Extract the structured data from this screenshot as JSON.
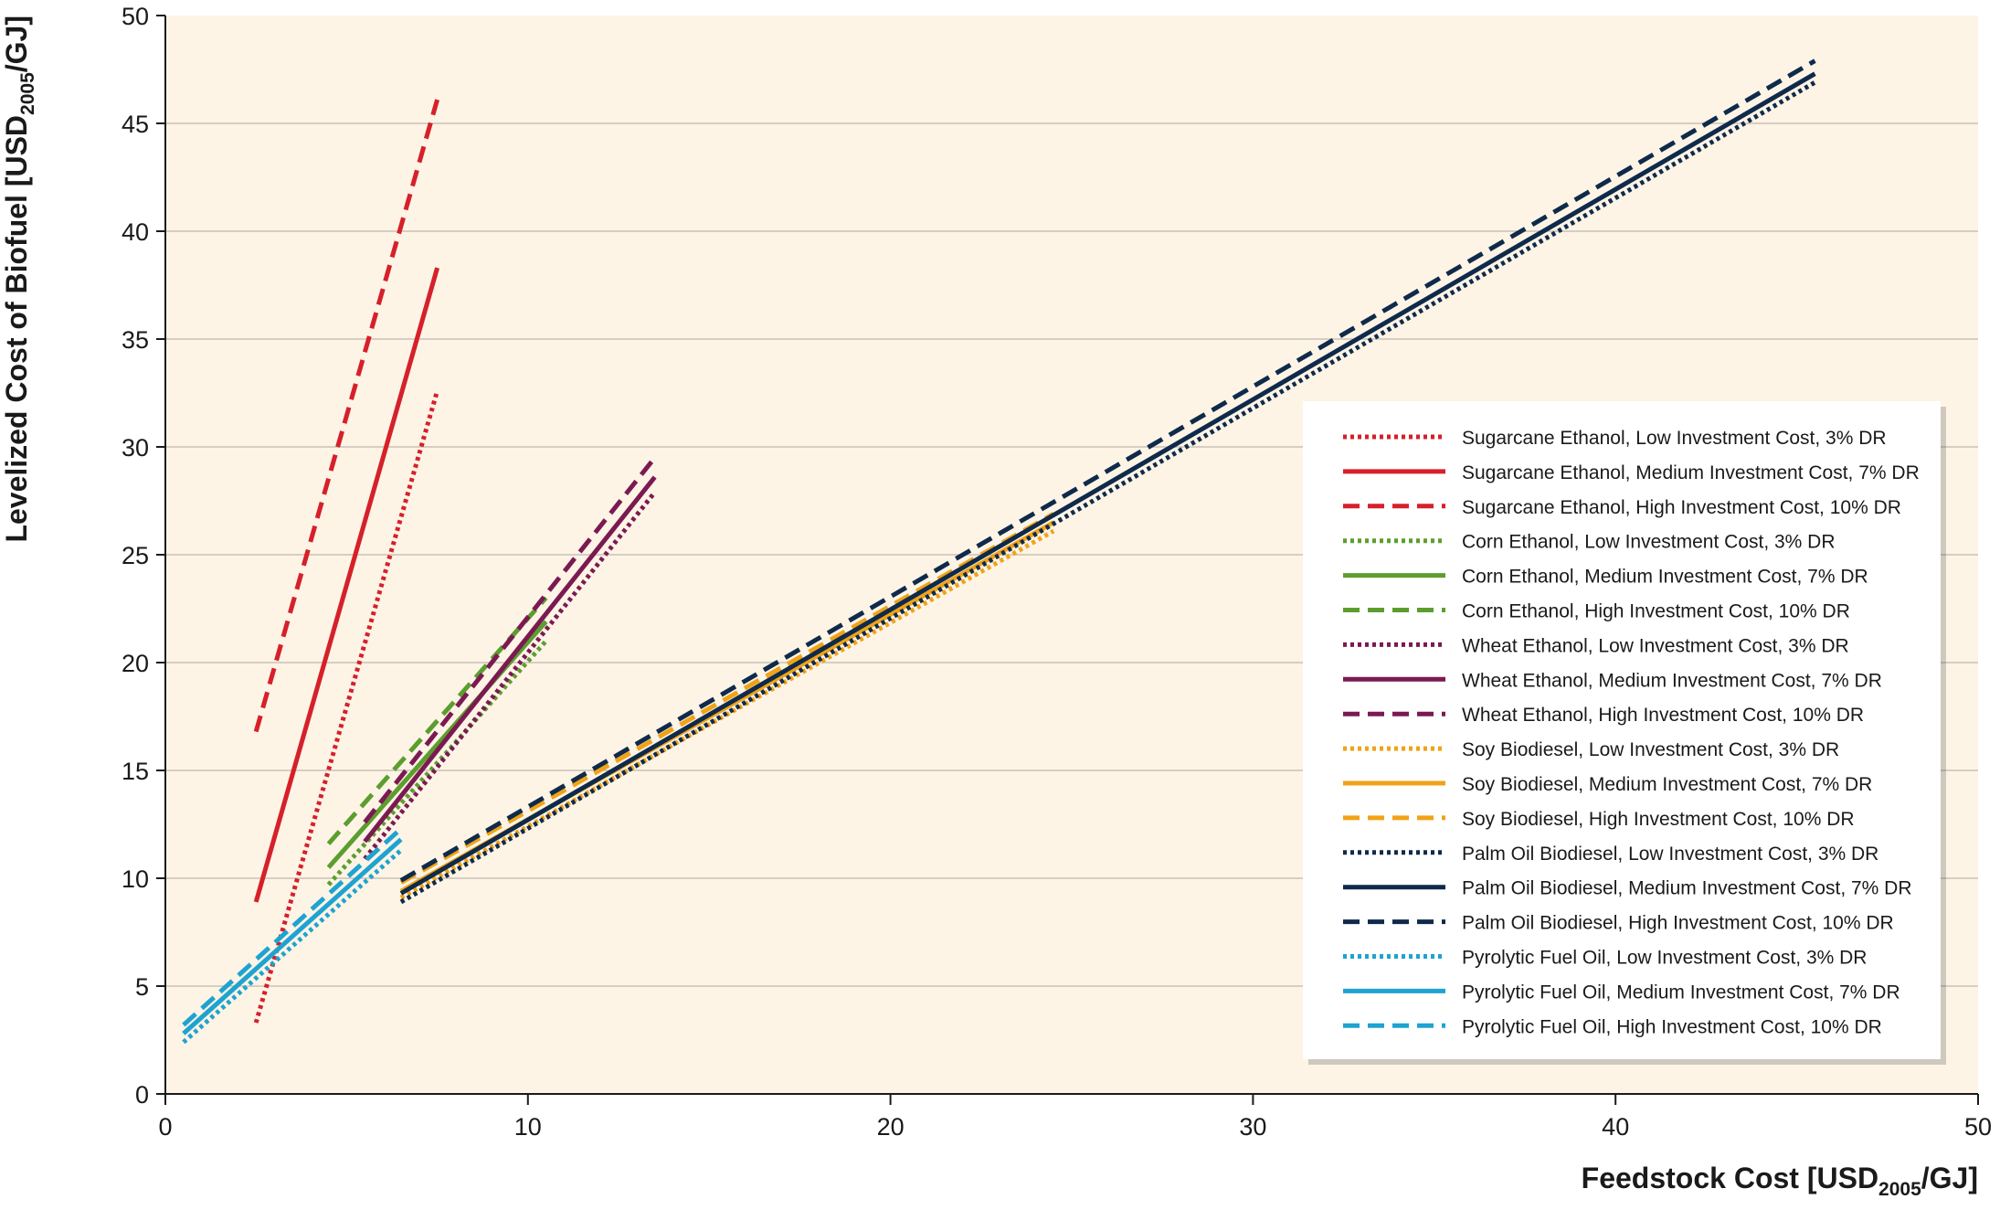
{
  "chart_data": {
    "type": "line",
    "title": "",
    "xlabel": {
      "main": "Feedstock Cost [USD",
      "sub": "2005",
      "tail": "/GJ]"
    },
    "ylabel": {
      "main": "Levelized Cost of Biofuel [USD",
      "sub": "2005",
      "tail": "/GJ]"
    },
    "xlim": [
      0,
      50
    ],
    "ylim": [
      0,
      50
    ],
    "xticks": [
      "0",
      "10",
      "20",
      "30",
      "40",
      "50"
    ],
    "yticks": [
      "0",
      "5",
      "10",
      "15",
      "20",
      "25",
      "30",
      "35",
      "40",
      "45",
      "50"
    ],
    "grid": "horizontal",
    "background": "#fdf4e6",
    "legend_position": "right",
    "series": [
      {
        "name": "Sugarcane Ethanol, Low Investment Cost, 3% DR",
        "color": "#d6202a",
        "dash": "dotted",
        "x": [
          2.5,
          7.5
        ],
        "y": [
          3.3,
          32.6
        ]
      },
      {
        "name": "Sugarcane Ethanol, Medium Investment Cost, 7% DR",
        "color": "#d6202a",
        "dash": "solid",
        "x": [
          2.5,
          7.5
        ],
        "y": [
          8.9,
          38.3
        ]
      },
      {
        "name": "Sugarcane Ethanol, High Investment Cost, 10% DR",
        "color": "#d6202a",
        "dash": "dashed",
        "x": [
          2.5,
          7.5
        ],
        "y": [
          16.8,
          46.1
        ]
      },
      {
        "name": "Corn Ethanol, Low Investment Cost, 3% DR",
        "color": "#5c9e2e",
        "dash": "dotted",
        "x": [
          4.5,
          10.5
        ],
        "y": [
          9.7,
          21.0
        ]
      },
      {
        "name": "Corn Ethanol, Medium Investment Cost, 7% DR",
        "color": "#5c9e2e",
        "dash": "solid",
        "x": [
          4.5,
          10.5
        ],
        "y": [
          10.5,
          21.9
        ]
      },
      {
        "name": "Corn Ethanol, High Investment Cost, 10% DR",
        "color": "#5c9e2e",
        "dash": "dashed",
        "x": [
          4.5,
          10.5
        ],
        "y": [
          11.6,
          23.0
        ]
      },
      {
        "name": "Wheat Ethanol, Low Investment Cost, 3% DR",
        "color": "#7b1a52",
        "dash": "dotted",
        "x": [
          5.5,
          13.5
        ],
        "y": [
          10.9,
          27.9
        ]
      },
      {
        "name": "Wheat Ethanol, Medium Investment Cost, 7% DR",
        "color": "#7b1a52",
        "dash": "solid",
        "x": [
          5.5,
          13.5
        ],
        "y": [
          11.7,
          28.6
        ]
      },
      {
        "name": "Wheat Ethanol, High Investment Cost, 10% DR",
        "color": "#7b1a52",
        "dash": "dashed",
        "x": [
          5.5,
          13.5
        ],
        "y": [
          12.6,
          29.5
        ]
      },
      {
        "name": "Soy Biodiesel, Low Investment Cost, 3% DR",
        "color": "#f0a318",
        "dash": "dotted",
        "x": [
          6.5,
          24.5
        ],
        "y": [
          9.1,
          26.1
        ]
      },
      {
        "name": "Soy Biodiesel, Medium Investment Cost, 7% DR",
        "color": "#f0a318",
        "dash": "solid",
        "x": [
          6.5,
          24.5
        ],
        "y": [
          9.4,
          26.5
        ]
      },
      {
        "name": "Soy Biodiesel, High Investment Cost, 10% DR",
        "color": "#f0a318",
        "dash": "dashed",
        "x": [
          6.5,
          24.5
        ],
        "y": [
          9.8,
          26.9
        ]
      },
      {
        "name": "Palm Oil Biodiesel, Low Investment Cost, 3% DR",
        "color": "#0f2a4a",
        "dash": "dotted",
        "x": [
          6.5,
          45.5
        ],
        "y": [
          8.9,
          46.9
        ]
      },
      {
        "name": "Palm Oil Biodiesel, Medium Investment Cost, 7% DR",
        "color": "#0f2a4a",
        "dash": "solid",
        "x": [
          6.5,
          45.5
        ],
        "y": [
          9.3,
          47.3
        ]
      },
      {
        "name": "Palm Oil Biodiesel, High Investment Cost, 10% DR",
        "color": "#0f2a4a",
        "dash": "dashed",
        "x": [
          6.5,
          45.5
        ],
        "y": [
          9.9,
          47.9
        ]
      },
      {
        "name": "Pyrolytic Fuel Oil, Low Investment Cost, 3% DR",
        "color": "#1fa3d0",
        "dash": "dotted",
        "x": [
          0.5,
          6.5
        ],
        "y": [
          2.4,
          11.3
        ]
      },
      {
        "name": "Pyrolytic Fuel Oil, Medium Investment Cost, 7% DR",
        "color": "#1fa3d0",
        "dash": "solid",
        "x": [
          0.5,
          6.5
        ],
        "y": [
          2.8,
          11.8
        ]
      },
      {
        "name": "Pyrolytic Fuel Oil, High Investment Cost, 10% DR",
        "color": "#1fa3d0",
        "dash": "dashed",
        "x": [
          0.5,
          6.5
        ],
        "y": [
          3.2,
          12.3
        ]
      }
    ]
  }
}
